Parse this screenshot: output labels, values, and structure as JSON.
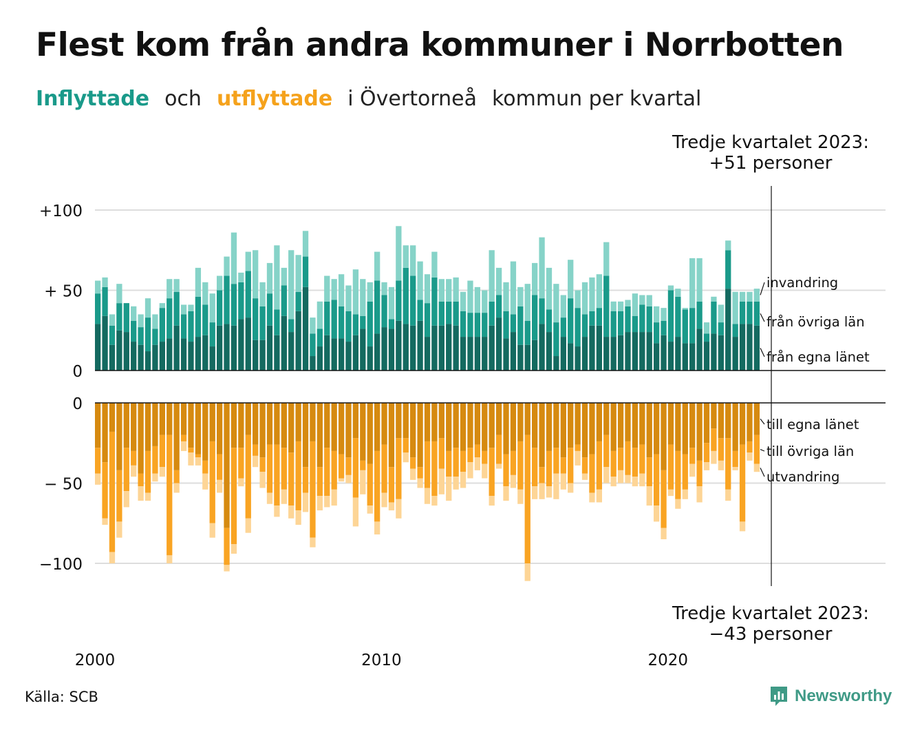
{
  "title": "Flest kom från andra kommuner i Norrbotten",
  "subtitle": {
    "part1": "Inflyttade",
    "part2": "och",
    "part3": "utflyttade",
    "part4": "i Övertorneå",
    "part5": "kommun per kvartal"
  },
  "annotations": {
    "top_line1": "Tredje kvartalet 2023:",
    "top_line2": "+51 personer",
    "bottom_line1": "Tredje kvartalet 2023:",
    "bottom_line2": "−43 personer"
  },
  "source": "Källa: SCB",
  "brand": "Newsworthy",
  "colors": {
    "in_egna": "#146a60",
    "in_ovriga": "#1a9a8a",
    "in_invandring": "#86d3c8",
    "out_egna": "#d68a10",
    "out_ovriga": "#f9a423",
    "out_utvandring": "#fdd596",
    "title_in": "#1a9a8a",
    "title_out": "#f5a21c",
    "brand": "#3f9a86"
  },
  "chart_data": [
    {
      "type": "bar",
      "stacked": true,
      "title": "Inflyttade",
      "x_ticks": [
        "2000",
        "2010",
        "2020"
      ],
      "y_ticks": [
        "0",
        "+ 50",
        "+100"
      ],
      "y_tick_values": [
        0,
        50,
        100
      ],
      "ylim": [
        0,
        105
      ],
      "grid": true,
      "start": "2000 Q1",
      "end": "2023 Q3",
      "frequency": "quarterly",
      "series": [
        {
          "name": "från egna länet",
          "values": [
            29,
            34,
            16,
            25,
            24,
            18,
            16,
            12,
            16,
            18,
            20,
            28,
            20,
            18,
            21,
            22,
            15,
            28,
            29,
            28,
            32,
            33,
            19,
            19,
            28,
            22,
            34,
            24,
            37,
            52,
            9,
            15,
            22,
            20,
            20,
            18,
            22,
            26,
            15,
            23,
            27,
            26,
            31,
            29,
            28,
            31,
            21,
            28,
            28,
            29,
            28,
            21,
            21,
            21,
            21,
            28,
            33,
            20,
            24,
            16,
            16,
            19,
            29,
            24,
            9,
            21,
            17,
            15,
            21,
            28,
            28,
            21,
            21,
            22,
            24,
            24,
            24,
            24,
            17,
            22,
            18,
            21,
            17,
            17,
            26,
            18,
            23,
            22,
            51,
            21,
            29,
            29,
            28
          ]
        },
        {
          "name": "från övriga län",
          "values": [
            19,
            18,
            12,
            17,
            18,
            13,
            11,
            21,
            10,
            21,
            25,
            21,
            15,
            19,
            25,
            19,
            15,
            22,
            30,
            26,
            23,
            29,
            26,
            21,
            20,
            16,
            19,
            8,
            12,
            19,
            14,
            11,
            21,
            24,
            20,
            19,
            13,
            8,
            28,
            33,
            20,
            6,
            25,
            35,
            31,
            13,
            21,
            30,
            15,
            14,
            15,
            16,
            15,
            15,
            15,
            15,
            14,
            17,
            11,
            24,
            15,
            28,
            16,
            14,
            21,
            12,
            28,
            24,
            14,
            9,
            11,
            38,
            16,
            15,
            16,
            10,
            17,
            16,
            13,
            9,
            32,
            25,
            21,
            22,
            17,
            5,
            20,
            8,
            24,
            8,
            14,
            14,
            15
          ]
        },
        {
          "name": "invandring",
          "values": [
            8,
            6,
            7,
            12,
            0,
            9,
            8,
            12,
            9,
            3,
            12,
            8,
            6,
            4,
            18,
            14,
            18,
            9,
            12,
            32,
            6,
            12,
            30,
            15,
            19,
            40,
            11,
            43,
            23,
            16,
            10,
            17,
            16,
            13,
            20,
            16,
            28,
            23,
            12,
            18,
            8,
            20,
            34,
            14,
            19,
            24,
            18,
            16,
            14,
            14,
            15,
            12,
            20,
            16,
            14,
            32,
            17,
            18,
            33,
            12,
            23,
            20,
            38,
            26,
            24,
            14,
            24,
            11,
            20,
            21,
            21,
            21,
            6,
            6,
            4,
            14,
            6,
            7,
            10,
            8,
            3,
            5,
            1,
            31,
            27,
            7,
            3,
            11,
            6,
            20,
            6,
            6,
            8
          ]
        }
      ]
    },
    {
      "type": "bar",
      "stacked": true,
      "title": "Utflyttade",
      "x_ticks": [
        "2000",
        "2010",
        "2020"
      ],
      "y_ticks": [
        "0",
        "− 50",
        "−100"
      ],
      "y_tick_values": [
        0,
        -50,
        -100
      ],
      "ylim": [
        -115,
        0
      ],
      "grid": true,
      "start": "2000 Q1",
      "end": "2023 Q3",
      "frequency": "quarterly",
      "series": [
        {
          "name": "till egna länet",
          "values": [
            -28,
            -37,
            -18,
            -42,
            -28,
            -30,
            -44,
            -30,
            -27,
            -20,
            -20,
            -42,
            -20,
            -28,
            -32,
            -36,
            -24,
            -32,
            -78,
            -28,
            -28,
            -20,
            -26,
            -34,
            -26,
            -26,
            -28,
            -31,
            -24,
            -40,
            -24,
            -40,
            -28,
            -30,
            -32,
            -34,
            -22,
            -36,
            -38,
            -30,
            -26,
            -40,
            -22,
            -22,
            -34,
            -40,
            -24,
            -24,
            -22,
            -30,
            -28,
            -30,
            -28,
            -26,
            -30,
            -28,
            -20,
            -32,
            -30,
            -24,
            -20,
            -28,
            -40,
            -30,
            -28,
            -34,
            -28,
            -26,
            -34,
            -32,
            -24,
            -20,
            -30,
            -28,
            -24,
            -28,
            -26,
            -34,
            -32,
            -42,
            -26,
            -30,
            -32,
            -28,
            -36,
            -25,
            -16,
            -22,
            -22,
            -30,
            -26,
            -24,
            -20
          ]
        },
        {
          "name": "till övriga län",
          "values": [
            -16,
            -35,
            -75,
            -32,
            -27,
            -9,
            -8,
            -26,
            -17,
            -20,
            -75,
            -8,
            -4,
            -3,
            -2,
            -8,
            -51,
            -16,
            -23,
            -60,
            -19,
            -52,
            -7,
            -9,
            -30,
            -38,
            -26,
            -33,
            -43,
            -16,
            -60,
            -18,
            -30,
            -24,
            -15,
            -11,
            -37,
            -6,
            -26,
            -44,
            -30,
            -22,
            -38,
            -9,
            -7,
            -7,
            -29,
            -34,
            -19,
            -16,
            -18,
            -13,
            -9,
            -8,
            -8,
            -30,
            -18,
            -20,
            -15,
            -30,
            -80,
            -24,
            -10,
            -22,
            -16,
            -10,
            -22,
            -4,
            -10,
            -24,
            -30,
            -20,
            -16,
            -14,
            -21,
            -18,
            -18,
            -18,
            -32,
            -36,
            -28,
            -30,
            -22,
            -10,
            -16,
            -12,
            -14,
            -14,
            -32,
            -10,
            -48,
            -7,
            -18
          ]
        },
        {
          "name": "utvandring",
          "values": [
            -7,
            -4,
            -7,
            -10,
            -10,
            -7,
            -9,
            -5,
            -5,
            -6,
            -5,
            -6,
            -6,
            -8,
            -5,
            -10,
            -9,
            -8,
            -4,
            -6,
            -5,
            -9,
            -7,
            -10,
            -7,
            -7,
            -9,
            -8,
            -9,
            -12,
            -6,
            -9,
            -7,
            -10,
            -2,
            -5,
            -18,
            -15,
            -5,
            -8,
            -9,
            -5,
            -12,
            -6,
            -7,
            -6,
            -10,
            -6,
            -16,
            -15,
            -8,
            -10,
            -10,
            -8,
            -9,
            -6,
            -3,
            -9,
            -8,
            -9,
            -11,
            -8,
            -10,
            -7,
            -16,
            -10,
            -6,
            -9,
            -4,
            -6,
            -8,
            -10,
            -6,
            -8,
            -5,
            -6,
            -8,
            -12,
            -10,
            -7,
            -4,
            -6,
            -6,
            -8,
            -10,
            -5,
            -8,
            -6,
            -7,
            -2,
            -6,
            -5,
            -5
          ]
        }
      ]
    }
  ]
}
